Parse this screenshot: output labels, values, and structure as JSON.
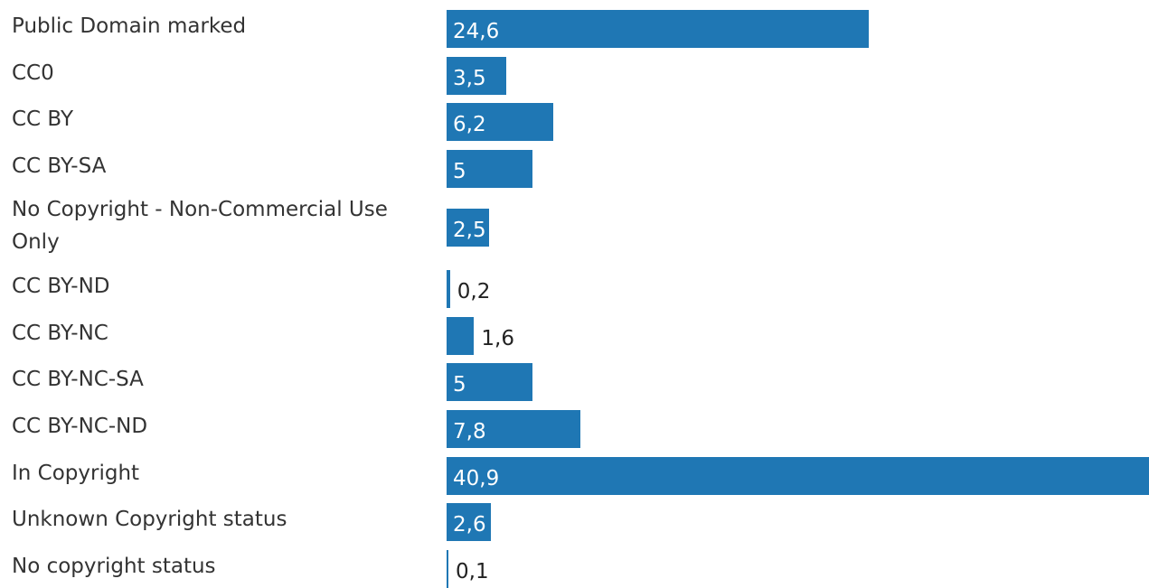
{
  "chart_data": {
    "type": "bar",
    "orientation": "horizontal",
    "categories": [
      "Public Domain marked",
      "CC0",
      "CC BY",
      "CC BY-SA",
      "No Copyright - Non-Commercial Use Only",
      "CC BY-ND",
      "CC BY-NC",
      "CC BY-NC-SA",
      "CC BY-NC-ND",
      "In Copyright",
      "Unknown Copyright status",
      "No copyright status"
    ],
    "values": [
      24.6,
      3.5,
      6.2,
      5,
      2.5,
      0.2,
      1.6,
      5,
      7.8,
      40.9,
      2.6,
      0.1
    ],
    "value_labels": [
      "24,6",
      "3,5",
      "6,2",
      "5",
      "2,5",
      "0,2",
      "1,6",
      "5",
      "7,8",
      "40,9",
      "2,6",
      "0,1"
    ],
    "bar_color": "#1f77b4",
    "grid": false,
    "legend": "none"
  }
}
